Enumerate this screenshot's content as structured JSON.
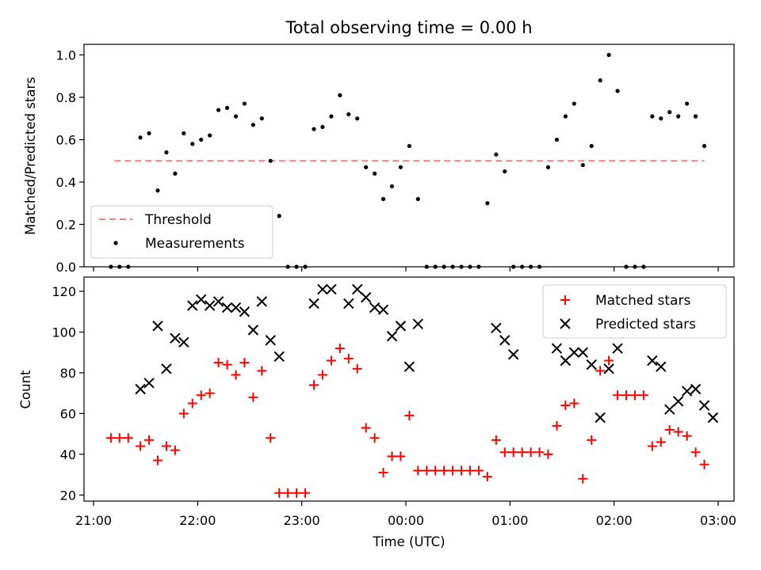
{
  "chart_data": [
    {
      "type": "scatter",
      "title": "Total observing time = 0.00 h",
      "ylabel": "Matched/Predicted stars",
      "xlabel": "",
      "xlim": [
        "21:00",
        "03:00"
      ],
      "ylim": [
        0.0,
        1.05
      ],
      "yticks": [
        "0.0",
        "0.2",
        "0.4",
        "0.6",
        "0.8",
        "1.0"
      ],
      "legend_position": "lower-left",
      "threshold": {
        "name": "Threshold",
        "value": 0.5,
        "x_range": [
          "21:12",
          "02:52"
        ],
        "color": "#f08080",
        "style": "dashed"
      },
      "series": [
        {
          "name": "Measurements",
          "marker": "dot",
          "color": "#000000",
          "x": [
            "21:10",
            "21:15",
            "21:20",
            "21:27",
            "21:32",
            "21:37",
            "21:42",
            "21:47",
            "21:52",
            "21:57",
            "22:02",
            "22:07",
            "22:12",
            "22:17",
            "22:22",
            "22:27",
            "22:32",
            "22:37",
            "22:42",
            "22:47",
            "22:52",
            "22:57",
            "23:02",
            "23:07",
            "23:12",
            "23:17",
            "23:22",
            "23:27",
            "23:32",
            "23:37",
            "23:42",
            "23:47",
            "23:52",
            "23:57",
            "00:02",
            "00:07",
            "00:12",
            "00:17",
            "00:22",
            "00:27",
            "00:32",
            "00:37",
            "00:42",
            "00:47",
            "00:52",
            "00:57",
            "01:02",
            "01:07",
            "01:12",
            "01:17",
            "01:22",
            "01:27",
            "01:32",
            "01:37",
            "01:42",
            "01:47",
            "01:52",
            "01:57",
            "02:02",
            "02:07",
            "02:12",
            "02:17",
            "02:22",
            "02:27",
            "02:32",
            "02:37",
            "02:42",
            "02:47",
            "02:52"
          ],
          "y": [
            0.0,
            0.0,
            0.0,
            0.61,
            0.63,
            0.36,
            0.54,
            0.44,
            0.63,
            0.58,
            0.6,
            0.62,
            0.74,
            0.75,
            0.71,
            0.77,
            0.67,
            0.7,
            0.5,
            0.24,
            0.0,
            0.0,
            0.0,
            0.65,
            0.66,
            0.71,
            0.81,
            0.72,
            0.7,
            0.47,
            0.44,
            0.32,
            0.38,
            0.47,
            0.57,
            0.32,
            0.0,
            0.0,
            0.0,
            0.0,
            0.0,
            0.0,
            0.0,
            0.3,
            0.53,
            0.45,
            0.0,
            0.0,
            0.0,
            0.0,
            0.47,
            0.6,
            0.71,
            0.77,
            0.48,
            0.57,
            0.88,
            1.0,
            0.83,
            0.0,
            0.0,
            0.0,
            0.71,
            0.7,
            0.73,
            0.71,
            0.77,
            0.71,
            0.57
          ]
        }
      ]
    },
    {
      "type": "scatter",
      "title": "",
      "xlabel": "Time (UTC)",
      "ylabel": "Count",
      "xlim": [
        "21:00",
        "03:00"
      ],
      "ylim": [
        17,
        127
      ],
      "xticks": [
        "21:00",
        "22:00",
        "23:00",
        "00:00",
        "01:00",
        "02:00",
        "03:00"
      ],
      "yticks": [
        "20",
        "40",
        "60",
        "80",
        "100",
        "120"
      ],
      "legend_position": "top-right",
      "series": [
        {
          "name": "Matched stars",
          "marker": "plus",
          "color": "#ff0000",
          "x": [
            "21:10",
            "21:15",
            "21:20",
            "21:27",
            "21:32",
            "21:37",
            "21:42",
            "21:47",
            "21:52",
            "21:57",
            "22:02",
            "22:07",
            "22:12",
            "22:17",
            "22:22",
            "22:27",
            "22:32",
            "22:37",
            "22:42",
            "22:47",
            "22:52",
            "22:57",
            "23:02",
            "23:07",
            "23:12",
            "23:17",
            "23:22",
            "23:27",
            "23:32",
            "23:37",
            "23:42",
            "23:47",
            "23:52",
            "23:57",
            "00:02",
            "00:07",
            "00:12",
            "00:17",
            "00:22",
            "00:27",
            "00:32",
            "00:37",
            "00:42",
            "00:47",
            "00:52",
            "00:57",
            "01:02",
            "01:07",
            "01:12",
            "01:17",
            "01:22",
            "01:27",
            "01:32",
            "01:37",
            "01:42",
            "01:47",
            "01:52",
            "01:57",
            "02:02",
            "02:07",
            "02:12",
            "02:17",
            "02:22",
            "02:27",
            "02:32",
            "02:37",
            "02:42",
            "02:47",
            "02:52"
          ],
          "y": [
            48,
            48,
            48,
            44,
            47,
            37,
            44,
            42,
            60,
            65,
            69,
            70,
            85,
            84,
            79,
            85,
            68,
            81,
            48,
            21,
            21,
            21,
            21,
            74,
            79,
            86,
            92,
            87,
            82,
            53,
            48,
            31,
            39,
            39,
            59,
            32,
            32,
            32,
            32,
            32,
            32,
            32,
            32,
            29,
            47,
            41,
            41,
            41,
            41,
            41,
            40,
            54,
            64,
            65,
            28,
            47,
            81,
            86,
            69,
            69,
            69,
            69,
            44,
            46,
            52,
            51,
            49,
            41,
            35
          ]
        },
        {
          "name": "Predicted stars",
          "marker": "x",
          "color": "#000000",
          "x": [
            "21:27",
            "21:32",
            "21:37",
            "21:42",
            "21:47",
            "21:52",
            "21:57",
            "22:02",
            "22:07",
            "22:12",
            "22:17",
            "22:22",
            "22:27",
            "22:32",
            "22:37",
            "22:42",
            "22:47",
            "23:07",
            "23:12",
            "23:17",
            "23:27",
            "23:32",
            "23:37",
            "23:42",
            "23:47",
            "23:52",
            "23:57",
            "00:02",
            "00:07",
            "00:52",
            "00:57",
            "01:02",
            "01:27",
            "01:32",
            "01:37",
            "01:42",
            "01:47",
            "01:52",
            "01:57",
            "02:02",
            "02:22",
            "02:27",
            "02:32",
            "02:37",
            "02:42",
            "02:47",
            "02:52",
            "02:57"
          ],
          "y": [
            72,
            75,
            103,
            82,
            97,
            95,
            113,
            116,
            113,
            115,
            112,
            112,
            110,
            101,
            115,
            96,
            88,
            114,
            121,
            121,
            114,
            121,
            117,
            112,
            111,
            98,
            103,
            83,
            104,
            102,
            96,
            89,
            92,
            86,
            90,
            90,
            84,
            58,
            82,
            92,
            86,
            83,
            62,
            66,
            71,
            72,
            64,
            58
          ]
        }
      ]
    }
  ]
}
